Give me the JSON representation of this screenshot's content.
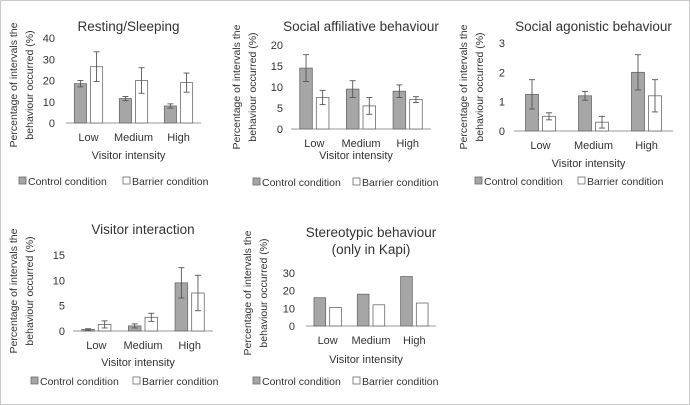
{
  "colors": {
    "control": "#a6a6a6",
    "barrier": "#ffffff",
    "bar_stroke": "#6a6a6a",
    "axis": "#9a9a9a",
    "text": "#333333"
  },
  "legend_labels": {
    "control": "Control condition",
    "barrier": "Barrier condition"
  },
  "chart_data": [
    {
      "id": "resting",
      "type": "bar",
      "title": [
        "Resting/Sleeping"
      ],
      "xlabel": "Visitor intensity",
      "ylabel": [
        "Percentage of intervals the",
        "behaviour  occurred (%)"
      ],
      "categories": [
        "Low",
        "Medium",
        "High"
      ],
      "ylim": [
        0,
        40
      ],
      "yticks": [
        0,
        10,
        20,
        30,
        40
      ],
      "error_bars": true,
      "series": [
        {
          "name": "Control condition",
          "values": [
            18.5,
            11.5,
            8
          ],
          "errors": [
            1.5,
            1,
            1
          ]
        },
        {
          "name": "Barrier condition",
          "values": [
            26.5,
            20,
            19
          ],
          "errors": [
            7,
            6,
            4.5
          ]
        }
      ]
    },
    {
      "id": "affiliative",
      "type": "bar",
      "title": [
        "Social affiliative behaviour"
      ],
      "xlabel": "Visitor intensity",
      "ylabel": [
        "Percentage of intervals the",
        "behaviour  occurred (%)"
      ],
      "categories": [
        "Low",
        "Medium",
        "High"
      ],
      "ylim": [
        0,
        20
      ],
      "yticks": [
        0,
        5,
        10,
        15,
        20
      ],
      "error_bars": true,
      "series": [
        {
          "name": "Control condition",
          "values": [
            14.5,
            9.5,
            9
          ],
          "errors": [
            3.2,
            2,
            1.5
          ]
        },
        {
          "name": "Barrier condition",
          "values": [
            7.5,
            5.5,
            7
          ],
          "errors": [
            1.7,
            2,
            0.7
          ]
        }
      ]
    },
    {
      "id": "agonistic",
      "type": "bar",
      "title": [
        "Social agonistic behaviour"
      ],
      "xlabel": "Visitor intensity",
      "ylabel": [
        "Percentage of intervals the",
        "behaviour  occurred (%)"
      ],
      "categories": [
        "Low",
        "Medium",
        "High"
      ],
      "ylim": [
        0,
        3
      ],
      "yticks": [
        0,
        1,
        2,
        3
      ],
      "error_bars": true,
      "series": [
        {
          "name": "Control condition",
          "values": [
            1.25,
            1.2,
            2
          ],
          "errors": [
            0.5,
            0.15,
            0.6
          ]
        },
        {
          "name": "Barrier condition",
          "values": [
            0.5,
            0.3,
            1.2
          ],
          "errors": [
            0.12,
            0.2,
            0.55
          ]
        }
      ]
    },
    {
      "id": "interaction",
      "type": "bar",
      "title": [
        "Visitor interaction"
      ],
      "xlabel": "Visitor intensity",
      "ylabel": [
        "Percentage of intervals the",
        "behaviour  occurred (%)"
      ],
      "categories": [
        "Low",
        "Medium",
        "High"
      ],
      "ylim": [
        0,
        15
      ],
      "yticks": [
        0,
        5,
        10,
        15
      ],
      "error_bars": true,
      "series": [
        {
          "name": "Control condition",
          "values": [
            0.3,
            1,
            9.5
          ],
          "errors": [
            0.15,
            0.4,
            3
          ]
        },
        {
          "name": "Barrier condition",
          "values": [
            1.3,
            2.7,
            7.5
          ],
          "errors": [
            0.7,
            0.8,
            3.5
          ]
        }
      ]
    },
    {
      "id": "stereotypic",
      "type": "bar",
      "title": [
        "Stereotypic behaviour",
        "(only in Kapi)"
      ],
      "xlabel": "Visitor intensity",
      "ylabel": [
        "Percentage of intervals the",
        "behaviour  occurred (%)"
      ],
      "categories": [
        "Low",
        "Medium",
        "High"
      ],
      "ylim": [
        0,
        30
      ],
      "yticks": [
        0,
        10,
        20,
        30
      ],
      "error_bars": false,
      "series": [
        {
          "name": "Control condition",
          "values": [
            16,
            18,
            28
          ]
        },
        {
          "name": "Barrier condition",
          "values": [
            10.5,
            12,
            13
          ]
        }
      ]
    }
  ]
}
